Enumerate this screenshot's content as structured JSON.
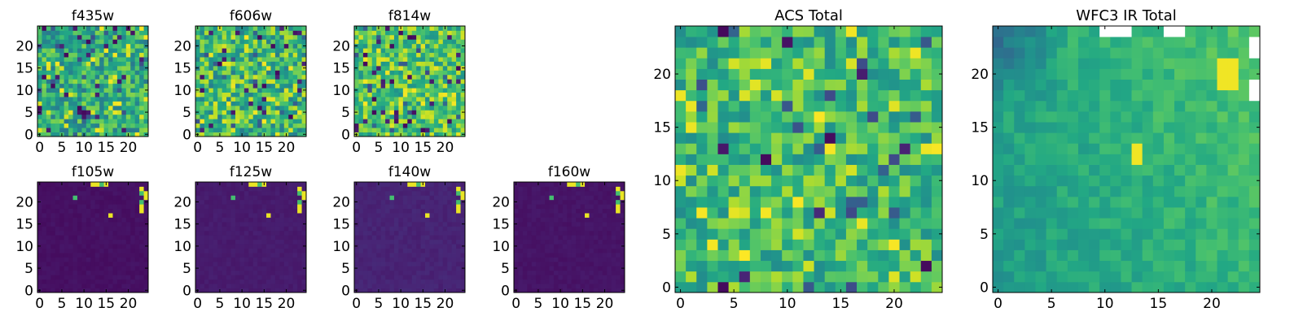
{
  "figure": {
    "background": "#ffffff"
  },
  "chart_data": [
    {
      "type": "heatmap",
      "title": "f435w",
      "grid_size": 25,
      "xlim": [
        0,
        25
      ],
      "ylim": [
        0,
        25
      ],
      "x_ticks": [
        0,
        5,
        10,
        15,
        20
      ],
      "y_ticks": [
        0,
        5,
        10,
        15,
        20
      ],
      "colormap": "viridis",
      "pattern": "noise",
      "level": 0.62,
      "noise": 0.22,
      "grid": false
    },
    {
      "type": "heatmap",
      "title": "f606w",
      "grid_size": 25,
      "xlim": [
        0,
        25
      ],
      "ylim": [
        0,
        25
      ],
      "x_ticks": [
        0,
        5,
        10,
        15,
        20
      ],
      "y_ticks": [
        0,
        5,
        10,
        15,
        20
      ],
      "colormap": "viridis",
      "pattern": "noise",
      "level": 0.68,
      "noise": 0.26,
      "grid": false
    },
    {
      "type": "heatmap",
      "title": "f814w",
      "grid_size": 25,
      "xlim": [
        0,
        25
      ],
      "ylim": [
        0,
        25
      ],
      "x_ticks": [
        0,
        5,
        10,
        15,
        20
      ],
      "y_ticks": [
        0,
        5,
        10,
        15,
        20
      ],
      "colormap": "viridis",
      "pattern": "noise",
      "level": 0.72,
      "noise": 0.22,
      "grid": false
    },
    {
      "type": "heatmap",
      "title": "f105w",
      "grid_size": 25,
      "xlim": [
        0,
        25
      ],
      "ylim": [
        0,
        25
      ],
      "x_ticks": [
        0,
        5,
        10,
        15,
        20
      ],
      "y_ticks": [
        0,
        5,
        10,
        15,
        20
      ],
      "colormap": "viridis",
      "pattern": "dark",
      "level": 0.03,
      "noise": 0.03,
      "grid": false
    },
    {
      "type": "heatmap",
      "title": "f125w",
      "grid_size": 25,
      "xlim": [
        0,
        25
      ],
      "ylim": [
        0,
        25
      ],
      "x_ticks": [
        0,
        5,
        10,
        15,
        20
      ],
      "y_ticks": [
        0,
        5,
        10,
        15,
        20
      ],
      "colormap": "viridis",
      "pattern": "dark",
      "level": 0.06,
      "noise": 0.03,
      "grid": false
    },
    {
      "type": "heatmap",
      "title": "f140w",
      "grid_size": 25,
      "xlim": [
        0,
        25
      ],
      "ylim": [
        0,
        25
      ],
      "x_ticks": [
        0,
        5,
        10,
        15,
        20
      ],
      "y_ticks": [
        0,
        5,
        10,
        15,
        20
      ],
      "colormap": "viridis",
      "pattern": "dark",
      "level": 0.08,
      "noise": 0.04,
      "grid": false
    },
    {
      "type": "heatmap",
      "title": "f160w",
      "grid_size": 25,
      "xlim": [
        0,
        25
      ],
      "ylim": [
        0,
        25
      ],
      "x_ticks": [
        0,
        5,
        10,
        15,
        20
      ],
      "y_ticks": [
        0,
        5,
        10,
        15,
        20
      ],
      "colormap": "viridis",
      "pattern": "dark",
      "level": 0.04,
      "noise": 0.03,
      "grid": false
    },
    {
      "type": "heatmap",
      "title": "ACS Total",
      "grid_size": 25,
      "xlim": [
        0,
        25
      ],
      "ylim": [
        0,
        25
      ],
      "x_ticks": [
        0,
        5,
        10,
        15,
        20
      ],
      "y_ticks": [
        0,
        5,
        10,
        15,
        20
      ],
      "colormap": "viridis",
      "pattern": "noise",
      "level": 0.68,
      "noise": 0.2,
      "grid": false
    },
    {
      "type": "heatmap",
      "title": "WFC3 IR Total",
      "grid_size": 25,
      "xlim": [
        0,
        25
      ],
      "ylim": [
        0,
        25
      ],
      "x_ticks": [
        0,
        5,
        10,
        15,
        20
      ],
      "y_ticks": [
        0,
        5,
        10,
        15,
        20
      ],
      "colormap": "viridis",
      "pattern": "smooth",
      "level": 0.62,
      "noise": 0.07,
      "grid": false
    }
  ]
}
